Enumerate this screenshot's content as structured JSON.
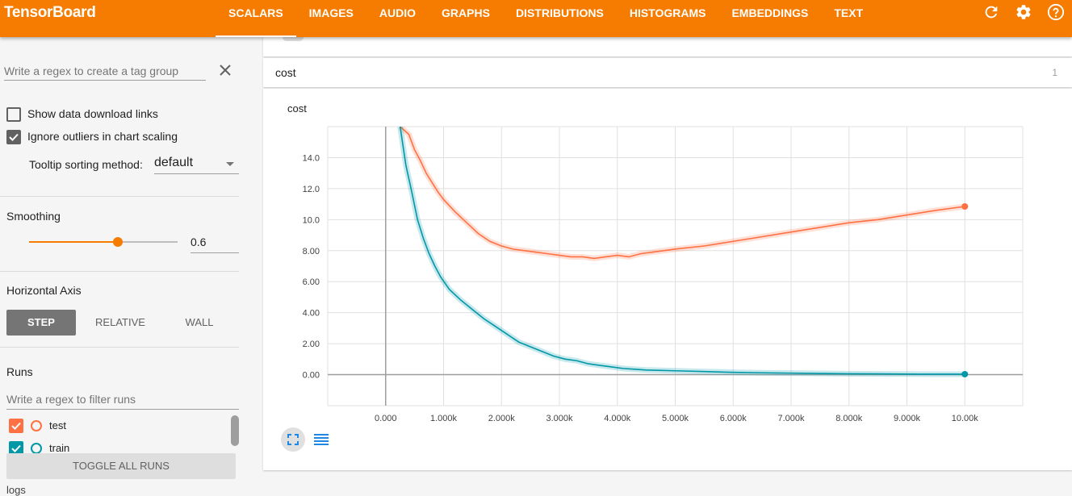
{
  "app": {
    "title": "TensorBoard"
  },
  "tabs": [
    {
      "label": "SCALARS",
      "active": true
    },
    {
      "label": "IMAGES"
    },
    {
      "label": "AUDIO"
    },
    {
      "label": "GRAPHS"
    },
    {
      "label": "DISTRIBUTIONS"
    },
    {
      "label": "HISTOGRAMS"
    },
    {
      "label": "EMBEDDINGS"
    },
    {
      "label": "TEXT"
    }
  ],
  "toolbar_icons": [
    "refresh-icon",
    "settings-gear-icon",
    "help-icon"
  ],
  "sidebar": {
    "tag_regex_placeholder": "Write a regex to create a tag group",
    "show_download_label": "Show data download links",
    "show_download_checked": false,
    "ignore_outliers_label": "Ignore outliers in chart scaling",
    "ignore_outliers_checked": true,
    "tooltip_label": "Tooltip sorting method:",
    "tooltip_value": "default",
    "smoothing_title": "Smoothing",
    "smoothing_value": "0.6",
    "smoothing_fraction": 0.6,
    "horizontal_axis_title": "Horizontal Axis",
    "axis_options": [
      {
        "label": "STEP",
        "active": true
      },
      {
        "label": "RELATIVE"
      },
      {
        "label": "WALL"
      }
    ],
    "runs_title": "Runs",
    "runs_placeholder": "Write a regex to filter runs",
    "runs": [
      {
        "name": "test",
        "color": "#ff7043",
        "checked": true
      },
      {
        "name": "train",
        "color": "#0097a7",
        "checked": true
      }
    ],
    "toggle_all_label": "TOGGLE ALL RUNS",
    "cutoff_text": "logs"
  },
  "main": {
    "category_name": "cost",
    "category_count": "1"
  },
  "chart_data": {
    "type": "line",
    "title": "cost",
    "xlabel": "",
    "ylabel": "",
    "x_tick_labels": [
      "0.000",
      "1.000k",
      "2.000k",
      "3.000k",
      "4.000k",
      "5.000k",
      "6.000k",
      "7.000k",
      "8.000k",
      "9.000k",
      "10.00k"
    ],
    "y_tick_labels": [
      "0.00",
      "2.00",
      "4.00",
      "6.00",
      "8.00",
      "10.0",
      "12.0",
      "14.0"
    ],
    "xlim": [
      -1000,
      11000
    ],
    "ylim": [
      -2,
      16
    ],
    "grid": true,
    "series": [
      {
        "name": "test",
        "color": "#ff7043",
        "x": [
          250,
          400,
          500,
          600,
          700,
          800,
          900,
          1000,
          1200,
          1400,
          1600,
          1800,
          2000,
          2200,
          2400,
          2600,
          2800,
          3000,
          3200,
          3400,
          3600,
          3800,
          4000,
          4200,
          4400,
          4600,
          4800,
          5000,
          5500,
          6000,
          6500,
          7000,
          7500,
          8000,
          8500,
          9000,
          9500,
          10000
        ],
        "y": [
          16,
          15.5,
          14.5,
          13.8,
          13,
          12.4,
          11.8,
          11.3,
          10.5,
          9.8,
          9.1,
          8.6,
          8.3,
          8.1,
          8.0,
          7.9,
          7.8,
          7.7,
          7.6,
          7.6,
          7.5,
          7.6,
          7.7,
          7.6,
          7.8,
          7.9,
          8.0,
          8.1,
          8.3,
          8.6,
          8.9,
          9.2,
          9.5,
          9.8,
          10.0,
          10.3,
          10.6,
          10.85
        ]
      },
      {
        "name": "train",
        "color": "#0097a7",
        "x": [
          250,
          350,
          450,
          550,
          650,
          750,
          850,
          950,
          1100,
          1300,
          1500,
          1700,
          1900,
          2100,
          2300,
          2500,
          2700,
          2900,
          3100,
          3300,
          3500,
          3700,
          3900,
          4100,
          4300,
          4500,
          4700,
          5000,
          5500,
          6000,
          6500,
          7000,
          7500,
          8000,
          8500,
          9000,
          9500,
          10000
        ],
        "y": [
          16,
          13.5,
          11.8,
          10.0,
          8.8,
          7.8,
          7.0,
          6.3,
          5.5,
          4.8,
          4.2,
          3.6,
          3.1,
          2.6,
          2.1,
          1.8,
          1.5,
          1.2,
          1.0,
          0.9,
          0.7,
          0.6,
          0.5,
          0.4,
          0.35,
          0.3,
          0.28,
          0.25,
          0.2,
          0.15,
          0.12,
          0.1,
          0.08,
          0.06,
          0.05,
          0.04,
          0.03,
          0.03
        ]
      }
    ]
  }
}
